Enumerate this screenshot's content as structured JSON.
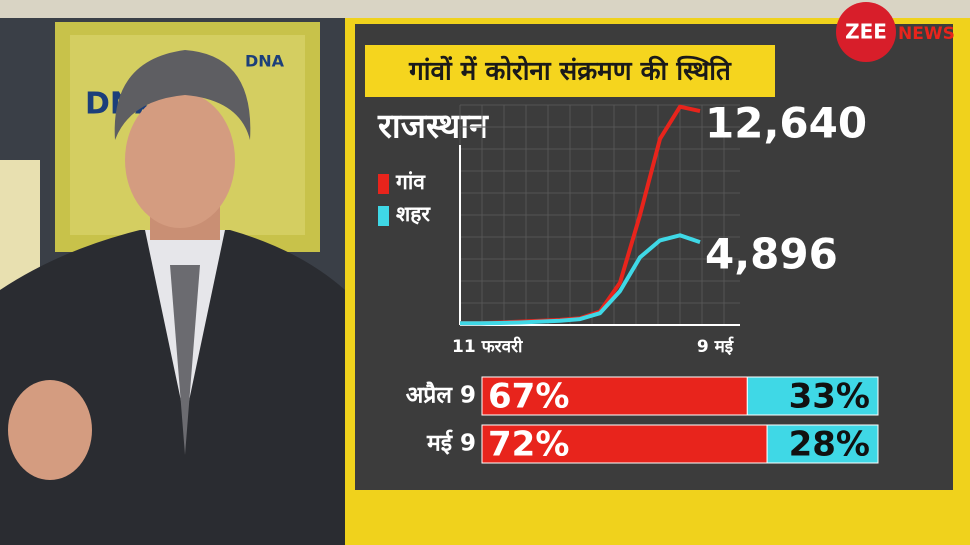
{
  "brand": {
    "first": "ZEE",
    "second": "NEWS"
  },
  "background_text": "DNA",
  "chart_data": [
    {
      "type": "line",
      "title": "गांवों में कोरोना संक्रमण की स्थिति",
      "subtitle": "राजस्थान",
      "categories": [
        "11 फरवरी",
        null,
        null,
        null,
        null,
        null,
        null,
        null,
        null,
        null,
        null,
        null,
        "9 मई"
      ],
      "ylim": [
        0,
        13000
      ],
      "grid": true,
      "series": [
        {
          "name": "गांव",
          "color": "#e8241c",
          "values": [
            100,
            100,
            150,
            200,
            250,
            300,
            400,
            800,
            2500,
            6500,
            11000,
            12900,
            12640
          ],
          "value_labels": [
            null,
            null,
            null,
            null,
            null,
            null,
            null,
            null,
            null,
            null,
            null,
            null,
            "12,640"
          ]
        },
        {
          "name": "शहर",
          "color": "#3fd8e6",
          "values": [
            100,
            100,
            120,
            150,
            200,
            250,
            350,
            700,
            2000,
            4000,
            5000,
            5300,
            4896
          ],
          "value_labels": [
            null,
            null,
            null,
            null,
            null,
            null,
            null,
            null,
            null,
            null,
            null,
            null,
            "4,896"
          ]
        }
      ]
    },
    {
      "type": "stacked-bar",
      "categories": [
        "अप्रैल 9",
        "मई 9"
      ],
      "xlim": [
        0,
        100
      ],
      "series": [
        {
          "color": "#e8241c",
          "values": [
            67,
            72
          ],
          "value_labels": [
            "67%",
            "72%"
          ]
        },
        {
          "color": "#3fd8e6",
          "values": [
            33,
            28
          ],
          "value_labels": [
            "33%",
            "28%"
          ]
        }
      ]
    }
  ]
}
